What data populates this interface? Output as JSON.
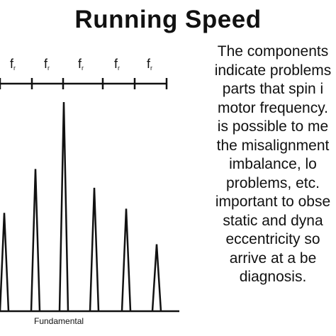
{
  "title": "Running Speed",
  "harmonic_label": "f",
  "harmonic_subscript": "r",
  "fundamental_label": "Fundamental",
  "description_lines": [
    "The components",
    "indicate problems",
    "parts that spin i",
    "motor frequency.",
    "is possible to me",
    "the misalignment",
    "imbalance, lo",
    "problems, etc.",
    "important to obse",
    "static and dyna",
    "eccentricity so",
    "arrive at  a be",
    "diagnosis."
  ],
  "colors": {
    "ink": "#111111",
    "background": "#ffffff"
  },
  "spectrum": {
    "relative_amplitudes": [
      0.47,
      0.68,
      1.0,
      0.59,
      0.49,
      0.32
    ]
  }
}
